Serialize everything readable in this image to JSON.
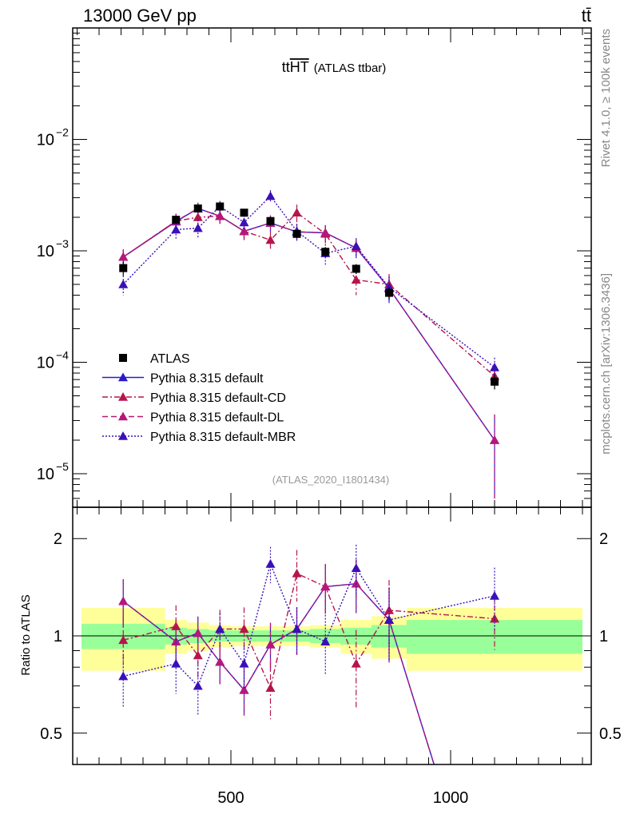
{
  "header": {
    "beam": "13000 GeV pp",
    "process": "tt̄",
    "rivet": "Rivet 4.1.0, ≥ 100k events",
    "site": "mcplots.cern.ch [arXiv:1306.3436]"
  },
  "chart_data": {
    "type": "line",
    "title": "ttHT (ATLAS ttbar)",
    "title_main": "tt",
    "title_overline": "HT",
    "title_sub": "(ATLAS ttbar)",
    "analysis_tag": "(ATLAS_2020_I1801434)",
    "xlim": [
      140,
      1320
    ],
    "ylim": [
      5e-06,
      0.1
    ],
    "ratio_ylim": [
      0.4,
      2.5
    ],
    "ratio_ylabel": "Ratio to ATLAS",
    "x_ticks": [
      500,
      1000
    ],
    "x_ticklabels": [
      "500",
      "1000"
    ],
    "y_ticks": [
      1e-05,
      0.0001,
      0.001,
      0.01
    ],
    "y_ticklabels": [
      {
        "base": "10",
        "exp": "−5"
      },
      {
        "base": "10",
        "exp": "−4"
      },
      {
        "base": "10",
        "exp": "−3"
      },
      {
        "base": "10",
        "exp": "−2"
      }
    ],
    "ratio_ticks": [
      0.5,
      1,
      2
    ],
    "ratio_ticklabels": [
      "0.5",
      "1",
      "2"
    ],
    "bins": [
      [
        160,
        350
      ],
      [
        350,
        400
      ],
      [
        400,
        450
      ],
      [
        450,
        500
      ],
      [
        500,
        560
      ],
      [
        560,
        620
      ],
      [
        620,
        680
      ],
      [
        680,
        750
      ],
      [
        750,
        820
      ],
      [
        820,
        900
      ],
      [
        900,
        1300
      ]
    ],
    "x": [
      255,
      375,
      425,
      475,
      530,
      590,
      650,
      715,
      785,
      860,
      1100
    ],
    "data": {
      "name": "ATLAS",
      "values": [
        0.0007,
        0.0019,
        0.0024,
        0.0025,
        0.0022,
        0.00185,
        0.00142,
        0.00098,
        0.00069,
        0.00042,
        6.7e-05
      ],
      "errors": [
        0.0001,
        0.00015,
        0.0002,
        0.0002,
        0.00018,
        0.00017,
        0.00012,
        0.0001,
        7e-05,
        5e-05,
        1e-05
      ],
      "band_inner": [
        0.09,
        0.06,
        0.05,
        0.04,
        0.04,
        0.04,
        0.04,
        0.05,
        0.06,
        0.08,
        0.12
      ],
      "band_outer": [
        0.22,
        0.12,
        0.1,
        0.08,
        0.07,
        0.07,
        0.07,
        0.08,
        0.12,
        0.15,
        0.22
      ]
    },
    "series": [
      {
        "name": "Pythia 8.315 default",
        "color": "#2a1acc",
        "dash": "",
        "values": [
          0.00088,
          0.00183,
          0.0024,
          0.00205,
          0.0015,
          0.00178,
          0.00148,
          0.00145,
          0.00106,
          0.00046,
          2e-05
        ],
        "errors": [
          0.00015,
          0.0003,
          0.0003,
          0.0003,
          0.00025,
          0.0003,
          0.00025,
          0.00025,
          0.0002,
          0.00012,
          1.4e-05
        ],
        "ratio": [
          1.28,
          0.96,
          1.02,
          0.83,
          0.68,
          0.94,
          1.05,
          1.42,
          1.45,
          1.12,
          0.1
        ]
      },
      {
        "name": "Pythia 8.315 default-CD",
        "color": "#b5154c",
        "dash": "7,3,2,3",
        "values": [
          0.00088,
          0.00185,
          0.002,
          0.00205,
          0.0015,
          0.00125,
          0.0022,
          0.00142,
          0.00055,
          0.0005,
          7.5e-05
        ],
        "errors": [
          0.00015,
          0.0003,
          0.0003,
          0.0003,
          0.00025,
          0.00025,
          0.0004,
          0.00025,
          0.00015,
          0.00012,
          1.5e-05
        ],
        "ratio": [
          0.97,
          1.07,
          0.87,
          1.05,
          1.05,
          0.69,
          1.56,
          1.42,
          0.82,
          1.2,
          1.13
        ]
      },
      {
        "name": "Pythia 8.315 default-DL",
        "color": "#b5187a",
        "dash": "7,4",
        "values": [
          0.00088,
          0.00185,
          0.0024,
          0.00205,
          0.0015,
          0.00178,
          0.00148,
          0.00145,
          0.00106,
          0.00046,
          2e-05
        ],
        "errors": [
          0.00015,
          0.0003,
          0.0003,
          0.0003,
          0.00025,
          0.0003,
          0.00025,
          0.00025,
          0.0002,
          0.00012,
          1.4e-05
        ],
        "ratio": [
          1.28,
          0.96,
          1.02,
          0.83,
          0.68,
          0.94,
          1.05,
          1.42,
          1.45,
          1.12,
          0.1
        ]
      },
      {
        "name": "Pythia 8.315 default-MBR",
        "color": "#3a10b8",
        "dash": "2,2",
        "values": [
          0.0005,
          0.00155,
          0.0016,
          0.0025,
          0.0018,
          0.0031,
          0.0015,
          0.00095,
          0.0011,
          0.00047,
          9e-05
        ],
        "errors": [
          0.0001,
          0.0003,
          0.0003,
          0.0003,
          0.0003,
          0.0004,
          0.00025,
          0.0002,
          0.0002,
          0.00012,
          2e-05
        ],
        "ratio": [
          0.75,
          0.82,
          0.7,
          1.05,
          0.82,
          1.67,
          1.05,
          0.96,
          1.62,
          1.12,
          1.33
        ]
      }
    ]
  }
}
